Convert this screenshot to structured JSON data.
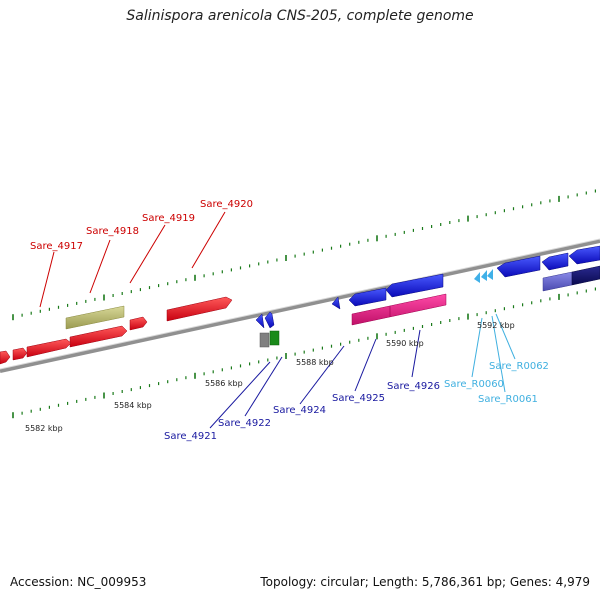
{
  "header": {
    "title": "Salinispora arenicola CNS-205, complete genome"
  },
  "footer": {
    "accession": "Accession: NC_009953",
    "summary": "Topology: circular; Length: 5,786,361 bp; Genes: 4,979"
  },
  "scale": {
    "tick_labels": [
      {
        "label": "5582 kbp"
      },
      {
        "label": "5584 kbp"
      },
      {
        "label": "5586 kbp"
      },
      {
        "label": "5588 kbp"
      },
      {
        "label": "5590 kbp"
      },
      {
        "label": "5592 kbp"
      }
    ]
  },
  "genes": {
    "forward": [
      {
        "label": "Sare_4917"
      },
      {
        "label": "Sare_4918"
      },
      {
        "label": "Sare_4919"
      },
      {
        "label": "Sare_4920"
      }
    ],
    "reverse": [
      {
        "label": "Sare_4921"
      },
      {
        "label": "Sare_4922"
      },
      {
        "label": "Sare_4924"
      },
      {
        "label": "Sare_4925"
      },
      {
        "label": "Sare_4926"
      }
    ],
    "rna": [
      {
        "label": "Sare_R0060"
      },
      {
        "label": "Sare_R0061"
      },
      {
        "label": "Sare_R0062"
      }
    ]
  },
  "colors": {
    "forward": "#e8101a",
    "reverse": "#1a1ae0",
    "pink": "#e8157e",
    "rna": "#3aa8e0",
    "khaki": "#b8b86a",
    "backbone": "#8a8a8a",
    "tick": "#1a7a1a"
  }
}
